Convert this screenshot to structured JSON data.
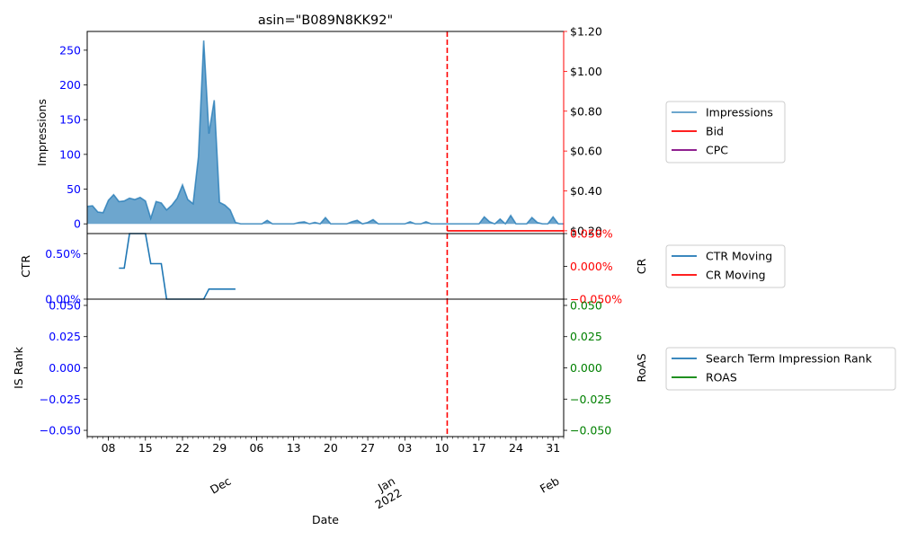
{
  "chart_data": {
    "title": "asin=\"B089N8KK92\"",
    "xlabel": "Date",
    "x_axis": {
      "type": "date",
      "range": [
        "2021-11-04",
        "2022-02-02"
      ],
      "tick_labels": [
        {
          "date": "2021-11-08",
          "label": "08"
        },
        {
          "date": "2021-11-15",
          "label": "15"
        },
        {
          "date": "2021-11-22",
          "label": "22"
        },
        {
          "date": "2021-11-29",
          "label": "29"
        },
        {
          "date": "2021-12-06",
          "label": "06"
        },
        {
          "date": "2021-12-13",
          "label": "13"
        },
        {
          "date": "2021-12-20",
          "label": "20"
        },
        {
          "date": "2021-12-27",
          "label": "27"
        },
        {
          "date": "2022-01-03",
          "label": "03"
        },
        {
          "date": "2022-01-10",
          "label": "10"
        },
        {
          "date": "2022-01-17",
          "label": "17"
        },
        {
          "date": "2022-01-24",
          "label": "24"
        },
        {
          "date": "2022-01-31",
          "label": "31"
        }
      ],
      "month_labels": [
        {
          "date": "2021-12-01",
          "lines": [
            "Dec"
          ]
        },
        {
          "date": "2022-01-01",
          "lines": [
            "Jan",
            "2022"
          ]
        },
        {
          "date": "2022-02-01",
          "lines": [
            "Feb"
          ]
        }
      ]
    },
    "vline_date": "2022-01-11",
    "colors": {
      "impressions": "#1f77b4",
      "bid": "#ff0000",
      "cpc": "#800080",
      "ctr": "#1f77b4",
      "cr": "#ff0000",
      "is_rank": "#1f77b4",
      "roas": "#008000",
      "left_tick": "#0000ff",
      "right_tick_top": "#000000",
      "right_tick_mid": "#ff0000",
      "right_tick_bottom": "#008000",
      "vline": "#ff0000"
    },
    "panels": [
      {
        "id": "top",
        "type": "area",
        "ylabel": "Impressions",
        "ylim": [
          -14,
          277
        ],
        "yticks": [
          0,
          50,
          100,
          150,
          200,
          250
        ],
        "ytick_labels": [
          "0",
          "50",
          "100",
          "150",
          "200",
          "250"
        ],
        "right_ylabel": "",
        "right_ylim": [
          0.186,
          1.2
        ],
        "right_yticks": [
          0.2,
          0.4,
          0.6,
          0.8,
          1.0,
          1.2
        ],
        "right_ytick_labels": [
          "$0.20",
          "$0.40",
          "$0.60",
          "$0.80",
          "$1.00",
          "$1.20"
        ],
        "series": [
          {
            "name": "Impressions",
            "axis": "left",
            "kind": "area",
            "start": "2021-11-04",
            "values": [
              25,
              26,
              17,
              16,
              34,
              42,
              32,
              33,
              37,
              35,
              38,
              33,
              8,
              32,
              30,
              20,
              27,
              37,
              56,
              35,
              29,
              96,
              264,
              130,
              178,
              31,
              27,
              20,
              2,
              0,
              0,
              0,
              0,
              0,
              5,
              0,
              0,
              0,
              0,
              0,
              2,
              3,
              0,
              2,
              0,
              9,
              0,
              0,
              0,
              0,
              3,
              5,
              0,
              2,
              6,
              0,
              0,
              0,
              0,
              0,
              0,
              3,
              0,
              0,
              3,
              0,
              0,
              0,
              0,
              0,
              0,
              0,
              0,
              0,
              0,
              10,
              3,
              0,
              7,
              0,
              12,
              0,
              0,
              0,
              9,
              2,
              0,
              0,
              10,
              0,
              0
            ]
          },
          {
            "name": "Bid",
            "axis": "right",
            "kind": "line",
            "points": [
              [
                "2022-01-11",
                0.2
              ],
              [
                "2022-02-02",
                0.2
              ]
            ]
          },
          {
            "name": "CPC",
            "axis": "right",
            "kind": "line",
            "points": []
          }
        ],
        "legend": [
          "Impressions",
          "Bid",
          "CPC"
        ]
      },
      {
        "id": "mid",
        "type": "line",
        "ylabel": "CTR",
        "ylim": [
          0,
          0.72
        ],
        "yticks": [
          0,
          0.5
        ],
        "ytick_labels": [
          "0.00%",
          "0.50%"
        ],
        "right_ylabel": "CR",
        "right_ylim": [
          -0.05,
          0.05
        ],
        "right_yticks": [
          -0.05,
          0,
          0.05
        ],
        "right_ytick_labels": [
          "−0.050%",
          "0.000%",
          "0.050%"
        ],
        "series": [
          {
            "name": "CTR Moving",
            "axis": "left",
            "kind": "step",
            "points": [
              [
                "2021-11-10",
                0.34
              ],
              [
                "2021-11-11",
                0.34
              ],
              [
                "2021-11-12",
                0.72
              ],
              [
                "2021-11-15",
                0.72
              ],
              [
                "2021-11-16",
                0.39
              ],
              [
                "2021-11-18",
                0.39
              ],
              [
                "2021-11-19",
                0.0
              ],
              [
                "2021-11-26",
                0.0
              ],
              [
                "2021-11-27",
                0.11
              ],
              [
                "2021-12-02",
                0.11
              ]
            ]
          },
          {
            "name": "CR Moving",
            "axis": "right",
            "kind": "line",
            "points": []
          }
        ],
        "legend": [
          "CTR Moving",
          "CR Moving"
        ]
      },
      {
        "id": "bottom",
        "type": "line",
        "ylabel": "IS Rank",
        "ylim": [
          -0.055,
          0.055
        ],
        "yticks": [
          -0.05,
          -0.025,
          0,
          0.025,
          0.05
        ],
        "ytick_labels": [
          "−0.050",
          "−0.025",
          "0.000",
          "0.025",
          "0.050"
        ],
        "right_ylabel": "RoAS",
        "right_ylim": [
          -0.055,
          0.055
        ],
        "right_yticks": [
          -0.05,
          -0.025,
          0,
          0.025,
          0.05
        ],
        "right_ytick_labels": [
          "−0.050",
          "−0.025",
          "0.000",
          "0.025",
          "0.050"
        ],
        "series": [
          {
            "name": "Search Term Impression Rank",
            "axis": "left",
            "kind": "line",
            "points": []
          },
          {
            "name": "ROAS",
            "axis": "right",
            "kind": "line",
            "points": []
          }
        ],
        "legend": [
          "Search Term Impression Rank",
          "ROAS"
        ]
      }
    ]
  }
}
